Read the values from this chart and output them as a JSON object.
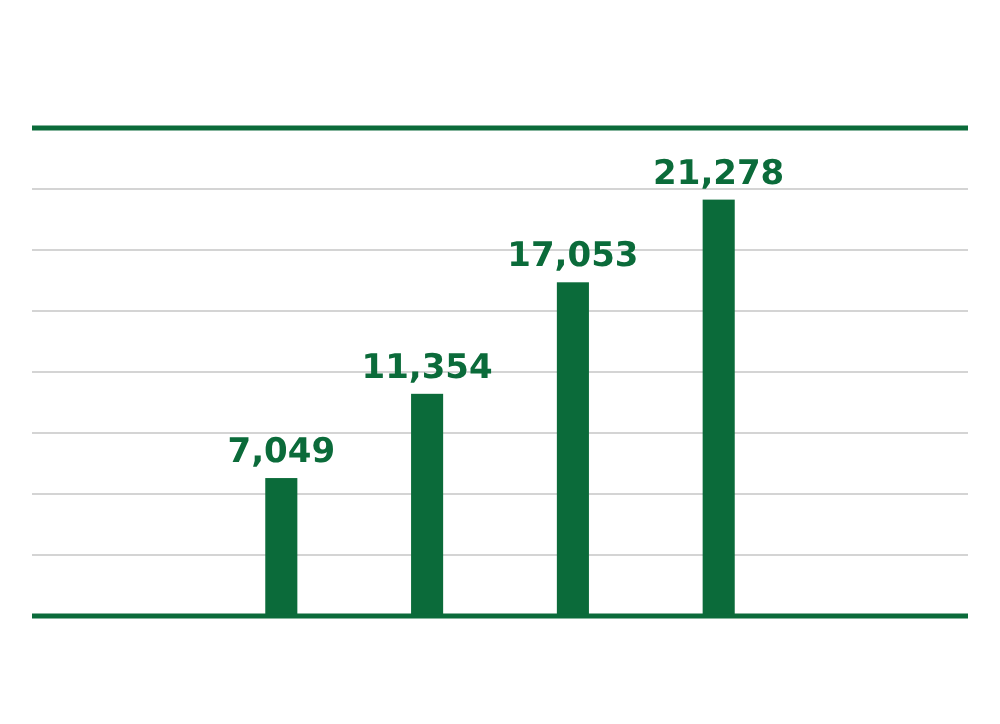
{
  "chart_data": {
    "type": "bar",
    "categories": [
      null,
      null,
      null,
      null
    ],
    "values": [
      7049,
      11354,
      17053,
      21278
    ],
    "value_labels": [
      "7,049",
      "11,354",
      "17,053",
      "21,278"
    ],
    "color": "#0b6b3a",
    "grid": true
  }
}
